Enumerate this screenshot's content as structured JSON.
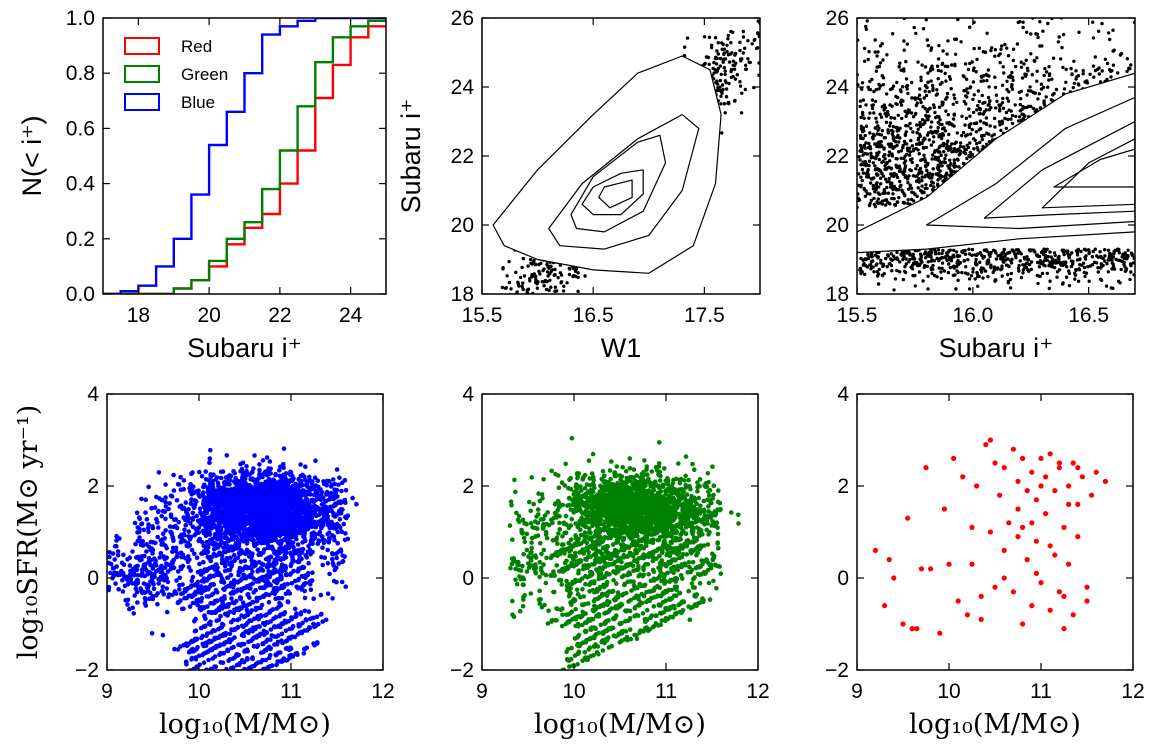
{
  "colors": {
    "red": "#ff0000",
    "green": "#008000",
    "blue": "#0000ff",
    "axes": "#000000"
  },
  "chart_data": [
    {
      "id": "cdf",
      "type": "line",
      "step": true,
      "xlabel": "Subaru i⁺",
      "ylabel": "N(< i⁺)",
      "xlim": [
        17,
        25
      ],
      "ylim": [
        0,
        1.0
      ],
      "xticks": [
        18,
        20,
        22,
        24
      ],
      "yticks": [
        0.0,
        0.2,
        0.4,
        0.6,
        0.8,
        1.0
      ],
      "yticklabels": [
        "0.0",
        "0.2",
        "0.4",
        "0.6",
        "0.8",
        "1.0"
      ],
      "legend": {
        "position": "top-left"
      },
      "series": [
        {
          "name": "Red",
          "color": "#ff0000",
          "x": [
            18.0,
            18.5,
            19.0,
            19.5,
            20.0,
            20.5,
            21.0,
            21.5,
            22.0,
            22.5,
            23.0,
            23.5,
            24.0,
            24.5,
            25.0
          ],
          "y": [
            0.0,
            0.0,
            0.0,
            0.02,
            0.05,
            0.1,
            0.18,
            0.24,
            0.29,
            0.4,
            0.52,
            0.71,
            0.83,
            0.93,
            0.97
          ]
        },
        {
          "name": "Green",
          "color": "#008000",
          "x": [
            18.0,
            18.5,
            19.0,
            19.5,
            20.0,
            20.5,
            21.0,
            21.5,
            22.0,
            22.5,
            23.0,
            23.5,
            24.0,
            24.5,
            25.0
          ],
          "y": [
            0.0,
            0.0,
            0.0,
            0.02,
            0.05,
            0.12,
            0.2,
            0.26,
            0.38,
            0.52,
            0.68,
            0.84,
            0.93,
            0.97,
            0.99
          ]
        },
        {
          "name": "Blue",
          "color": "#0000ff",
          "x": [
            18.0,
            18.5,
            19.0,
            19.5,
            20.0,
            20.5,
            21.0,
            21.5,
            22.0,
            22.5,
            23.0,
            23.5,
            24.0,
            24.5,
            25.0
          ],
          "y": [
            0.01,
            0.03,
            0.1,
            0.2,
            0.36,
            0.54,
            0.66,
            0.8,
            0.94,
            0.97,
            0.99,
            1.0,
            1.0,
            1.0,
            1.0
          ]
        }
      ]
    },
    {
      "id": "w1",
      "type": "scatter",
      "xlabel": "W1",
      "ylabel": "Subaru i⁺",
      "xlim": [
        15.5,
        18.0
      ],
      "ylim": [
        18,
        26
      ],
      "xticks": [
        15.5,
        16.5,
        17.5
      ],
      "xticklabels": [
        "15.5",
        "16.5",
        "17.5"
      ],
      "yticks": [
        18,
        20,
        22,
        24,
        26
      ],
      "point_color": "#000000",
      "contours": [
        [
          [
            15.6,
            20.0
          ],
          [
            16.0,
            21.6
          ],
          [
            16.5,
            23.2
          ],
          [
            16.9,
            24.4
          ],
          [
            17.3,
            24.9
          ],
          [
            17.55,
            24.5
          ],
          [
            17.65,
            23.2
          ],
          [
            17.6,
            21.2
          ],
          [
            17.4,
            19.4
          ],
          [
            17.0,
            18.6
          ],
          [
            16.5,
            18.7
          ],
          [
            16.0,
            19.0
          ],
          [
            15.7,
            19.4
          ]
        ],
        [
          [
            16.1,
            19.9
          ],
          [
            16.4,
            21.2
          ],
          [
            16.9,
            22.5
          ],
          [
            17.3,
            23.2
          ],
          [
            17.45,
            22.8
          ],
          [
            17.3,
            21.0
          ],
          [
            17.0,
            19.7
          ],
          [
            16.6,
            19.3
          ],
          [
            16.2,
            19.4
          ]
        ],
        [
          [
            16.3,
            20.3
          ],
          [
            16.5,
            21.4
          ],
          [
            16.9,
            22.4
          ],
          [
            17.1,
            22.6
          ],
          [
            17.15,
            21.8
          ],
          [
            16.95,
            20.4
          ],
          [
            16.6,
            19.8
          ],
          [
            16.35,
            19.9
          ]
        ],
        [
          [
            16.4,
            20.6
          ],
          [
            16.5,
            21.1
          ],
          [
            16.75,
            21.5
          ],
          [
            16.95,
            21.6
          ],
          [
            16.95,
            20.9
          ],
          [
            16.75,
            20.3
          ],
          [
            16.5,
            20.3
          ]
        ],
        [
          [
            16.55,
            20.8
          ],
          [
            16.6,
            21.1
          ],
          [
            16.85,
            21.3
          ],
          [
            16.85,
            20.8
          ],
          [
            16.65,
            20.5
          ]
        ]
      ]
    },
    {
      "id": "subaru",
      "type": "scatter",
      "xlabel": "Subaru i⁺",
      "ylabel": "",
      "xlim": [
        15.5,
        16.7
      ],
      "ylim": [
        18,
        26
      ],
      "xticks": [
        15.5,
        16.0,
        16.5
      ],
      "xticklabels": [
        "15.5",
        "16.0",
        "16.5"
      ],
      "yticks": [
        18,
        20,
        22,
        24,
        26
      ],
      "point_color": "#000000",
      "contours": [
        [
          [
            15.5,
            19.8
          ],
          [
            15.8,
            20.8
          ],
          [
            16.1,
            22.5
          ],
          [
            16.4,
            23.8
          ],
          [
            16.7,
            24.4
          ],
          [
            16.7,
            19.8
          ],
          [
            16.2,
            19.6
          ],
          [
            15.8,
            19.3
          ],
          [
            15.5,
            19.2
          ]
        ],
        [
          [
            15.8,
            20.0
          ],
          [
            16.1,
            21.2
          ],
          [
            16.4,
            22.8
          ],
          [
            16.7,
            23.7
          ],
          [
            16.7,
            20.1
          ],
          [
            16.2,
            19.9
          ]
        ],
        [
          [
            16.05,
            20.2
          ],
          [
            16.3,
            21.6
          ],
          [
            16.7,
            23.0
          ],
          [
            16.7,
            20.4
          ],
          [
            16.35,
            20.3
          ]
        ],
        [
          [
            16.3,
            20.5
          ],
          [
            16.5,
            21.8
          ],
          [
            16.7,
            22.5
          ],
          [
            16.7,
            20.6
          ]
        ],
        [
          [
            16.35,
            21.1
          ],
          [
            16.55,
            21.9
          ],
          [
            16.7,
            22.2
          ],
          [
            16.7,
            21.1
          ]
        ]
      ]
    },
    {
      "id": "sfr_blue",
      "type": "scatter",
      "xlabel": "log₁₀(M/M⊙)",
      "ylabel": "log₁₀SFR(M⊙ yr⁻¹)",
      "xlim": [
        9,
        12
      ],
      "ylim": [
        -2,
        4
      ],
      "xticks": [
        9,
        10,
        11,
        12
      ],
      "yticks": [
        -2,
        0,
        2,
        4
      ],
      "yticklabels": [
        "−2",
        "0",
        "2",
        "4"
      ],
      "point_color": "#0000ff"
    },
    {
      "id": "sfr_green",
      "type": "scatter",
      "xlabel": "log₁₀(M/M⊙)",
      "ylabel": "",
      "xlim": [
        9,
        12
      ],
      "ylim": [
        -2,
        4
      ],
      "xticks": [
        9,
        10,
        11,
        12
      ],
      "yticks": [
        -2,
        0,
        2,
        4
      ],
      "yticklabels": [
        "−2",
        "0",
        "2",
        "4"
      ],
      "point_color": "#008000"
    },
    {
      "id": "sfr_red",
      "type": "scatter",
      "xlabel": "log₁₀(M/M⊙)",
      "ylabel": "",
      "xlim": [
        9,
        12
      ],
      "ylim": [
        -2,
        4
      ],
      "xticks": [
        9,
        10,
        11,
        12
      ],
      "yticks": [
        -2,
        0,
        2,
        4
      ],
      "yticklabels": [
        "−2",
        "0",
        "2",
        "4"
      ],
      "point_color": "#ff0000",
      "x": [
        9.2,
        9.3,
        9.35,
        9.5,
        9.55,
        9.6,
        9.7,
        9.75,
        9.8,
        9.9,
        9.95,
        10.0,
        10.05,
        10.1,
        10.15,
        10.2,
        10.25,
        10.3,
        10.35,
        10.4,
        10.45,
        10.5,
        10.5,
        10.55,
        10.6,
        10.6,
        10.65,
        10.7,
        10.7,
        10.75,
        10.75,
        10.8,
        10.8,
        10.85,
        10.85,
        10.9,
        10.9,
        10.95,
        10.95,
        11.0,
        11.0,
        11.05,
        11.05,
        11.1,
        11.1,
        11.15,
        11.15,
        11.2,
        11.2,
        11.25,
        11.25,
        11.3,
        11.3,
        11.35,
        11.35,
        11.4,
        11.4,
        11.45,
        11.5,
        11.55,
        11.6,
        11.7,
        9.4,
        9.65,
        10.25,
        10.45,
        10.75,
        11.0,
        11.25,
        11.5,
        10.6,
        10.9,
        11.2,
        10.35,
        10.8,
        11.1,
        11.4,
        10.95,
        11.3
      ],
      "y": [
        0.6,
        -0.6,
        0.4,
        -1.0,
        1.3,
        -1.1,
        0.2,
        2.4,
        0.2,
        -1.2,
        1.5,
        0.3,
        2.6,
        -0.5,
        2.2,
        -0.8,
        0.3,
        2.0,
        -0.4,
        2.9,
        1.0,
        2.5,
        -0.2,
        1.8,
        0.0,
        2.4,
        1.2,
        2.8,
        -0.3,
        2.1,
        0.9,
        2.6,
        -1.0,
        1.9,
        0.4,
        2.3,
        -0.6,
        1.7,
        0.8,
        2.6,
        -0.1,
        1.4,
        2.2,
        -0.7,
        2.7,
        0.5,
        1.9,
        -0.3,
        2.4,
        1.1,
        -1.1,
        2.0,
        0.3,
        2.5,
        -0.8,
        1.6,
        0.9,
        2.2,
        -0.2,
        1.8,
        2.3,
        2.1,
        0.0,
        -1.1,
        1.1,
        3.0,
        1.5,
        2.0,
        -0.4,
        -0.5,
        0.6,
        1.2,
        2.5,
        -0.9,
        1.1,
        0.7,
        2.4,
        0.1,
        1.6
      ]
    }
  ]
}
